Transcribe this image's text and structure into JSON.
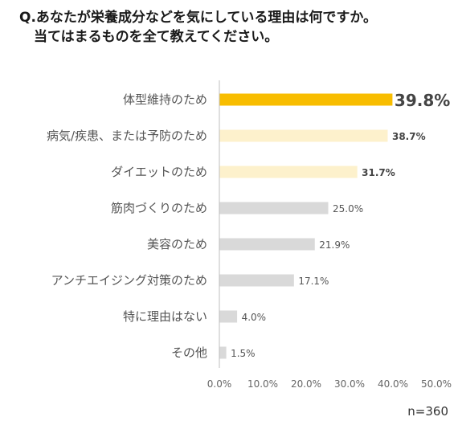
{
  "question": {
    "line1": "Q.あなたが栄養成分などを気にしている理由は何ですか。",
    "line2": "当てはまるものを全て教えてください。"
  },
  "sample_size": "n=360",
  "colors": {
    "top": "#f8bd00",
    "highlight": "#fdf1cc",
    "other": "#d9d9d9",
    "axis": "#bfbfbf"
  },
  "chart_data": {
    "type": "bar",
    "orientation": "horizontal",
    "categories": [
      "体型維持のため",
      "病気/疾患、または予防のため",
      "ダイエットのため",
      "筋肉づくりのため",
      "美容のため",
      "アンチエイジング対策のため",
      "特に理由はない",
      "その他"
    ],
    "values": [
      39.8,
      38.7,
      31.7,
      25.0,
      21.9,
      17.1,
      4.0,
      1.5
    ],
    "value_labels": [
      "39.8%",
      "38.7%",
      "31.7%",
      "25.0%",
      "21.9%",
      "17.1%",
      "4.0%",
      "1.5%"
    ],
    "xlim": [
      0,
      50
    ],
    "ticks": [
      "0.0%",
      "10.0%",
      "20.0%",
      "30.0%",
      "40.0%",
      "50.0%"
    ],
    "grid": false,
    "xlabel": "",
    "ylabel": ""
  }
}
